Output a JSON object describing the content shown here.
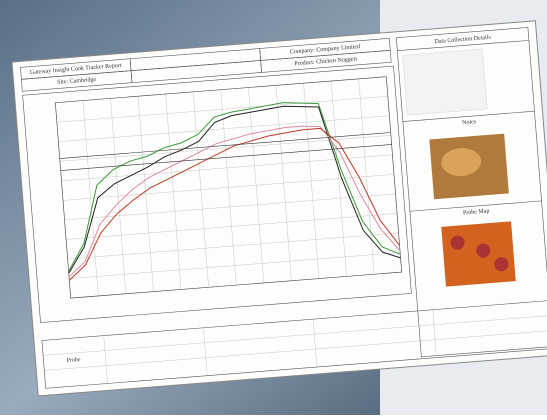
{
  "header": {
    "title": "Gateway Insight Cook Tracker Report",
    "site": "Site: Cambridge",
    "company": "Company: Company Limited",
    "product": "Product: Chicken Nuggets"
  },
  "side": {
    "details": "Data Collection Details",
    "notes": "Notes",
    "probe_map": "Probe Map"
  },
  "table": {
    "first_header": "Probe"
  },
  "chart_data": {
    "type": "line",
    "x": [
      0,
      1,
      2,
      3,
      4,
      5,
      6,
      7,
      8,
      9,
      10,
      11,
      12,
      13,
      14,
      15,
      16,
      17,
      18,
      19
    ],
    "xlim": [
      0,
      19
    ],
    "ylim": [
      0,
      110
    ],
    "series": [
      {
        "color": "#3a9a3a",
        "values": [
          15,
          30,
          62,
          70,
          74,
          76,
          80,
          82,
          86,
          95,
          97,
          98,
          99,
          100,
          99,
          98,
          60,
          30,
          15,
          10
        ]
      },
      {
        "color": "#222222",
        "values": [
          14,
          28,
          55,
          62,
          66,
          70,
          75,
          78,
          82,
          92,
          95,
          96,
          97,
          98,
          97,
          96,
          55,
          25,
          12,
          8
        ]
      },
      {
        "color": "#e08aa0",
        "values": [
          12,
          20,
          40,
          50,
          58,
          64,
          68,
          72,
          76,
          80,
          82,
          84,
          85,
          86,
          86,
          85,
          70,
          45,
          25,
          12
        ]
      },
      {
        "color": "#c0392b",
        "values": [
          10,
          18,
          35,
          45,
          52,
          58,
          62,
          66,
          70,
          74,
          78,
          80,
          82,
          83,
          84,
          84,
          75,
          55,
          30,
          15
        ]
      }
    ]
  }
}
